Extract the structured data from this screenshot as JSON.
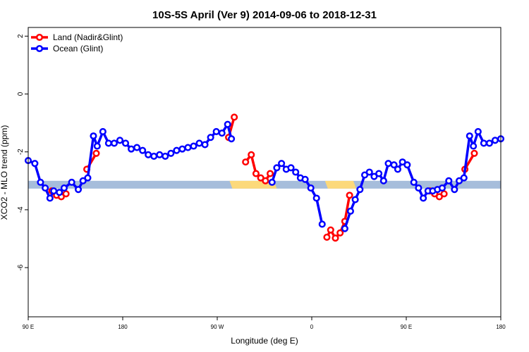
{
  "chart_data": {
    "type": "line",
    "title": "10S-5S April (Ver 9)   2014-09-06 to 2018-12-31",
    "xlabel": "Longitude (deg E)",
    "ylabel": "XCO2 - MLO trend (ppm)",
    "xlim": [
      0,
      500
    ],
    "ylim": [
      -7.7,
      2.3
    ],
    "x_ticks": [
      {
        "value": 0,
        "label": "90 E"
      },
      {
        "value": 100,
        "label": "180"
      },
      {
        "value": 200,
        "label": "90 W"
      },
      {
        "value": 300,
        "label": "0"
      },
      {
        "value": 400,
        "label": "90 E"
      },
      {
        "value": 500,
        "label": "180"
      }
    ],
    "y_ticks": [
      -6,
      -4,
      -2,
      0,
      2
    ],
    "grid": false,
    "legend_position": "top-left",
    "surface_band": {
      "y_min": -3.27,
      "y_max": -3.0,
      "ocean_color": "#a6bddb",
      "land_color": "#fcd97a",
      "land_segments": [
        {
          "x_start": 213,
          "x_end": 260
        },
        {
          "x_start": 314,
          "x_end": 344
        }
      ]
    },
    "series": [
      {
        "name": "Land (Nadir&Glint)",
        "color": "#ff0000",
        "segments": [
          [
            [
              25,
              -3.35
            ],
            [
              30,
              -3.5
            ],
            [
              35,
              -3.55
            ],
            [
              40,
              -3.45
            ]
          ],
          [
            [
              62,
              -2.6
            ],
            [
              72,
              -2.05
            ]
          ],
          [
            [
              212,
              -1.5
            ],
            [
              218,
              -0.8
            ]
          ],
          [
            [
              230,
              -2.35
            ],
            [
              236,
              -2.1
            ],
            [
              241,
              -2.75
            ],
            [
              246,
              -2.9
            ],
            [
              251,
              -3.0
            ],
            [
              256,
              -2.75
            ]
          ],
          [
            [
              316,
              -4.95
            ],
            [
              320,
              -4.7
            ],
            [
              325,
              -4.98
            ],
            [
              330,
              -4.8
            ],
            [
              335,
              -4.4
            ],
            [
              340,
              -3.5
            ]
          ],
          [
            [
              425,
              -3.35
            ],
            [
              430,
              -3.45
            ],
            [
              435,
              -3.55
            ],
            [
              440,
              -3.45
            ]
          ],
          [
            [
              462,
              -2.6
            ],
            [
              472,
              -2.05
            ]
          ]
        ]
      },
      {
        "name": "Ocean (Glint)",
        "color": "#0000ff",
        "segments": [
          [
            [
              0,
              -2.3
            ],
            [
              7,
              -2.4
            ],
            [
              13,
              -3.05
            ],
            [
              18,
              -3.25
            ],
            [
              23,
              -3.6
            ],
            [
              27,
              -3.35
            ],
            [
              33,
              -3.4
            ],
            [
              38,
              -3.25
            ],
            [
              46,
              -3.05
            ],
            [
              53,
              -3.3
            ],
            [
              58,
              -3.0
            ],
            [
              63,
              -2.9
            ],
            [
              69,
              -1.45
            ],
            [
              73,
              -1.8
            ],
            [
              79,
              -1.3
            ],
            [
              85,
              -1.7
            ],
            [
              91,
              -1.7
            ],
            [
              97,
              -1.6
            ],
            [
              103,
              -1.7
            ],
            [
              109,
              -1.9
            ],
            [
              115,
              -1.85
            ],
            [
              121,
              -1.95
            ],
            [
              127,
              -2.1
            ],
            [
              133,
              -2.15
            ],
            [
              139,
              -2.1
            ],
            [
              145,
              -2.15
            ],
            [
              151,
              -2.05
            ],
            [
              157,
              -1.95
            ],
            [
              163,
              -1.9
            ],
            [
              169,
              -1.85
            ],
            [
              175,
              -1.8
            ],
            [
              181,
              -1.7
            ],
            [
              187,
              -1.75
            ],
            [
              193,
              -1.5
            ],
            [
              199,
              -1.3
            ],
            [
              205,
              -1.35
            ],
            [
              211,
              -1.05
            ],
            [
              215,
              -1.55
            ]
          ],
          [
            [
              258,
              -3.05
            ],
            [
              263,
              -2.55
            ],
            [
              268,
              -2.4
            ],
            [
              273,
              -2.6
            ],
            [
              278,
              -2.55
            ],
            [
              283,
              -2.7
            ],
            [
              288,
              -2.9
            ],
            [
              293,
              -2.95
            ],
            [
              299,
              -3.25
            ],
            [
              305,
              -3.6
            ],
            [
              311,
              -4.5
            ]
          ],
          [
            [
              335,
              -4.65
            ],
            [
              341,
              -4.05
            ],
            [
              346,
              -3.65
            ],
            [
              351,
              -3.3
            ],
            [
              356,
              -2.8
            ],
            [
              361,
              -2.7
            ],
            [
              366,
              -2.85
            ],
            [
              371,
              -2.75
            ],
            [
              376,
              -3.0
            ],
            [
              381,
              -2.4
            ],
            [
              387,
              -2.45
            ],
            [
              391,
              -2.6
            ],
            [
              396,
              -2.35
            ],
            [
              401,
              -2.45
            ],
            [
              408,
              -3.05
            ],
            [
              413,
              -3.25
            ],
            [
              418,
              -3.6
            ],
            [
              423,
              -3.35
            ],
            [
              428,
              -3.35
            ],
            [
              433,
              -3.3
            ],
            [
              438,
              -3.25
            ],
            [
              445,
              -3.0
            ],
            [
              451,
              -3.3
            ],
            [
              456,
              -3.0
            ],
            [
              461,
              -2.9
            ],
            [
              467,
              -1.45
            ],
            [
              471,
              -1.8
            ],
            [
              476,
              -1.3
            ],
            [
              482,
              -1.7
            ],
            [
              488,
              -1.7
            ],
            [
              494,
              -1.6
            ],
            [
              500,
              -1.55
            ]
          ]
        ]
      }
    ]
  }
}
